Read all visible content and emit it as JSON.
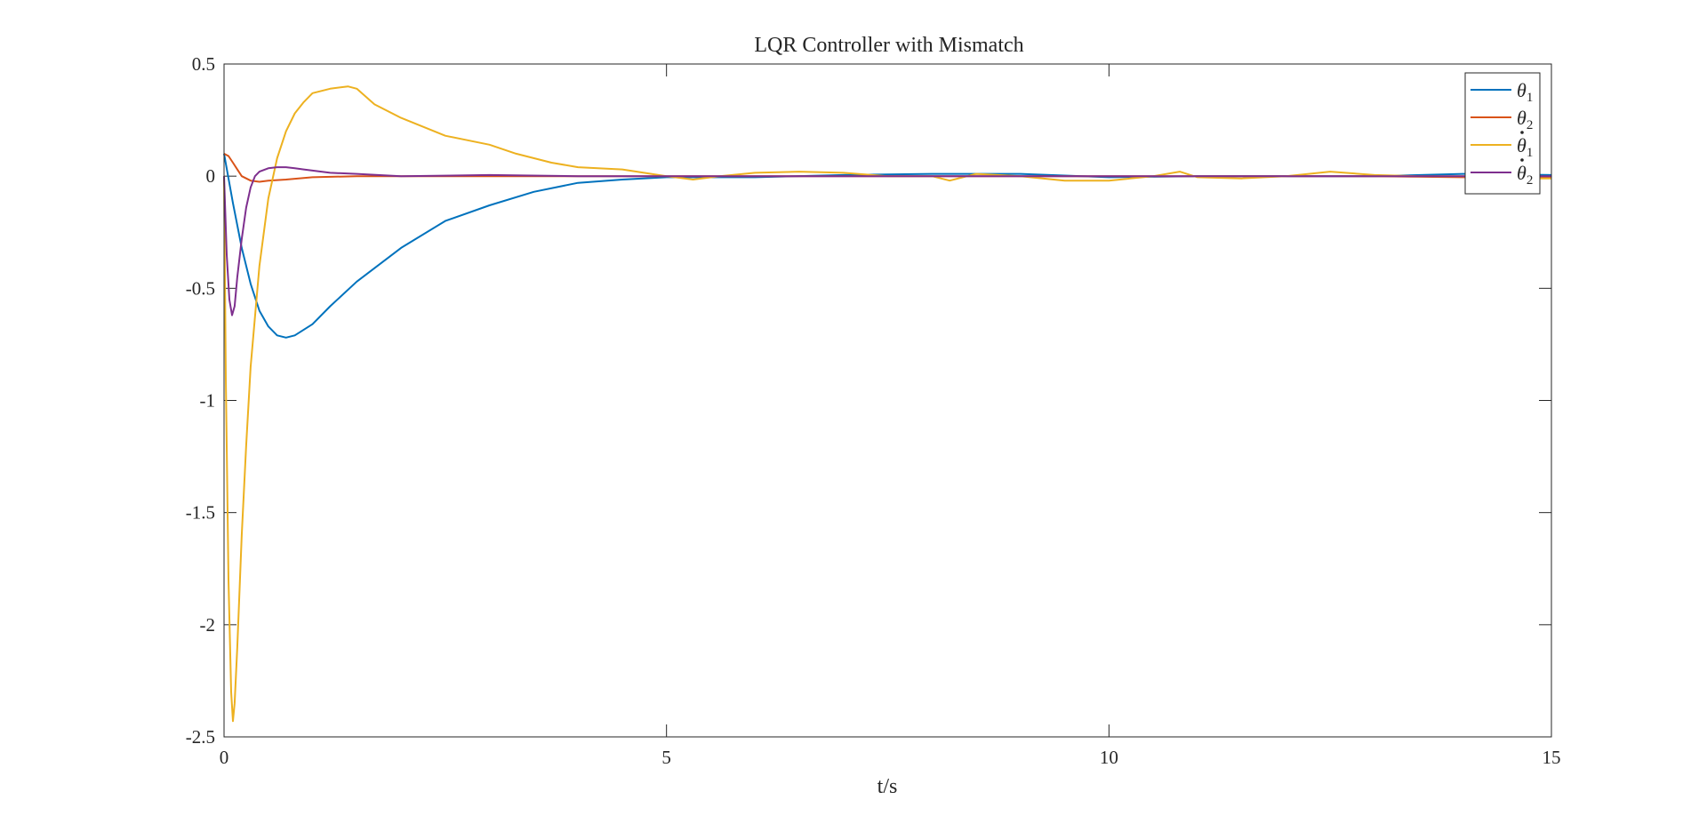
{
  "chart_data": {
    "type": "line",
    "title": "LQR Controller with Mismatch",
    "xlabel": "t/s",
    "ylabel": "",
    "xlim": [
      0,
      15
    ],
    "ylim": [
      -2.5,
      0.5
    ],
    "xticks": [
      0,
      5,
      10,
      15
    ],
    "xtick_labels": [
      "0",
      "5",
      "10",
      "15"
    ],
    "yticks": [
      0.5,
      0,
      -0.5,
      -1,
      -1.5,
      -2,
      -2.5
    ],
    "ytick_labels": [
      "0.5",
      "0",
      "-0.5",
      "-1",
      "-1.5",
      "-2",
      "-2.5"
    ],
    "grid": false,
    "legend_position": "top-right",
    "series": [
      {
        "name": "θ1",
        "legend_symbol": "θ",
        "legend_dot": false,
        "legend_subscript": "1",
        "color": "#0072BD",
        "x": [
          0,
          0.1,
          0.2,
          0.3,
          0.4,
          0.5,
          0.6,
          0.7,
          0.8,
          1.0,
          1.2,
          1.5,
          2.0,
          2.5,
          3.0,
          3.5,
          4.0,
          4.5,
          5.0,
          6.0,
          7.0,
          8.0,
          9.0,
          10.0,
          11.0,
          12.0,
          13.0,
          14.0,
          15.0
        ],
        "y": [
          0.1,
          -0.12,
          -0.32,
          -0.48,
          -0.6,
          -0.67,
          -0.71,
          -0.72,
          -0.71,
          -0.66,
          -0.58,
          -0.47,
          -0.32,
          -0.2,
          -0.13,
          -0.07,
          -0.03,
          -0.015,
          -0.005,
          -0.005,
          0.005,
          0.01,
          0.01,
          -0.005,
          0.0,
          0.0,
          0.0,
          0.01,
          0.005
        ]
      },
      {
        "name": "θ2",
        "legend_symbol": "θ",
        "legend_dot": false,
        "legend_subscript": "2",
        "color": "#D95319",
        "x": [
          0,
          0.05,
          0.1,
          0.15,
          0.2,
          0.3,
          0.4,
          0.5,
          0.7,
          1.0,
          1.5,
          2.0,
          3.0,
          4.0,
          5.0,
          6.0,
          7.0,
          8.0,
          9.0,
          10.0,
          11.0,
          12.0,
          13.0,
          14.0,
          15.0
        ],
        "y": [
          0.1,
          0.09,
          0.06,
          0.03,
          0.0,
          -0.02,
          -0.025,
          -0.02,
          -0.015,
          -0.005,
          0.0,
          0.0,
          0.0,
          0.0,
          0.0,
          0.0,
          0.0,
          0.0,
          0.0,
          0.0,
          0.0,
          0.0,
          0.0,
          -0.005,
          -0.005
        ]
      },
      {
        "name": "θ̇1",
        "legend_symbol": "θ",
        "legend_dot": true,
        "legend_subscript": "1",
        "color": "#EDB120",
        "x": [
          0,
          0.02,
          0.05,
          0.08,
          0.1,
          0.12,
          0.15,
          0.2,
          0.25,
          0.3,
          0.4,
          0.5,
          0.6,
          0.7,
          0.8,
          0.9,
          1.0,
          1.2,
          1.4,
          1.5,
          1.7,
          2.0,
          2.5,
          3.0,
          3.3,
          3.7,
          4.0,
          4.5,
          5.0,
          5.3,
          5.6,
          6.0,
          6.5,
          7.0,
          7.5,
          8.0,
          8.2,
          8.5,
          9.0,
          9.5,
          10.0,
          10.5,
          10.8,
          11.0,
          11.5,
          12.0,
          12.5,
          13.0,
          13.5,
          14.0,
          14.5,
          15.0
        ],
        "y": [
          0.0,
          -0.9,
          -1.8,
          -2.3,
          -2.43,
          -2.35,
          -2.1,
          -1.6,
          -1.2,
          -0.85,
          -0.4,
          -0.1,
          0.08,
          0.2,
          0.28,
          0.33,
          0.37,
          0.39,
          0.4,
          0.39,
          0.32,
          0.26,
          0.18,
          0.14,
          0.1,
          0.06,
          0.04,
          0.03,
          0.0,
          -0.015,
          0.0,
          0.015,
          0.02,
          0.015,
          0.0,
          0.0,
          -0.02,
          0.01,
          0.0,
          -0.02,
          -0.02,
          0.0,
          0.02,
          -0.005,
          -0.01,
          0.0,
          0.02,
          0.005,
          0.0,
          0.0,
          -0.01,
          -0.01
        ]
      },
      {
        "name": "θ̇2",
        "legend_symbol": "θ",
        "legend_dot": true,
        "legend_subscript": "2",
        "color": "#7E2F8E",
        "x": [
          0,
          0.03,
          0.06,
          0.09,
          0.12,
          0.15,
          0.2,
          0.25,
          0.3,
          0.35,
          0.4,
          0.5,
          0.6,
          0.7,
          0.8,
          0.9,
          1.0,
          1.2,
          1.5,
          2.0,
          3.0,
          4.0,
          5.0,
          6.0,
          7.0,
          8.0,
          9.0,
          10.0,
          11.0,
          12.0,
          13.0,
          14.0,
          15.0
        ],
        "y": [
          0.0,
          -0.35,
          -0.55,
          -0.62,
          -0.58,
          -0.45,
          -0.28,
          -0.14,
          -0.05,
          0.0,
          0.02,
          0.035,
          0.04,
          0.04,
          0.035,
          0.03,
          0.025,
          0.015,
          0.01,
          0.0,
          0.005,
          0.0,
          0.0,
          0.0,
          0.0,
          0.0,
          0.0,
          0.0,
          0.0,
          0.0,
          0.0,
          0.0,
          0.0
        ]
      }
    ]
  }
}
